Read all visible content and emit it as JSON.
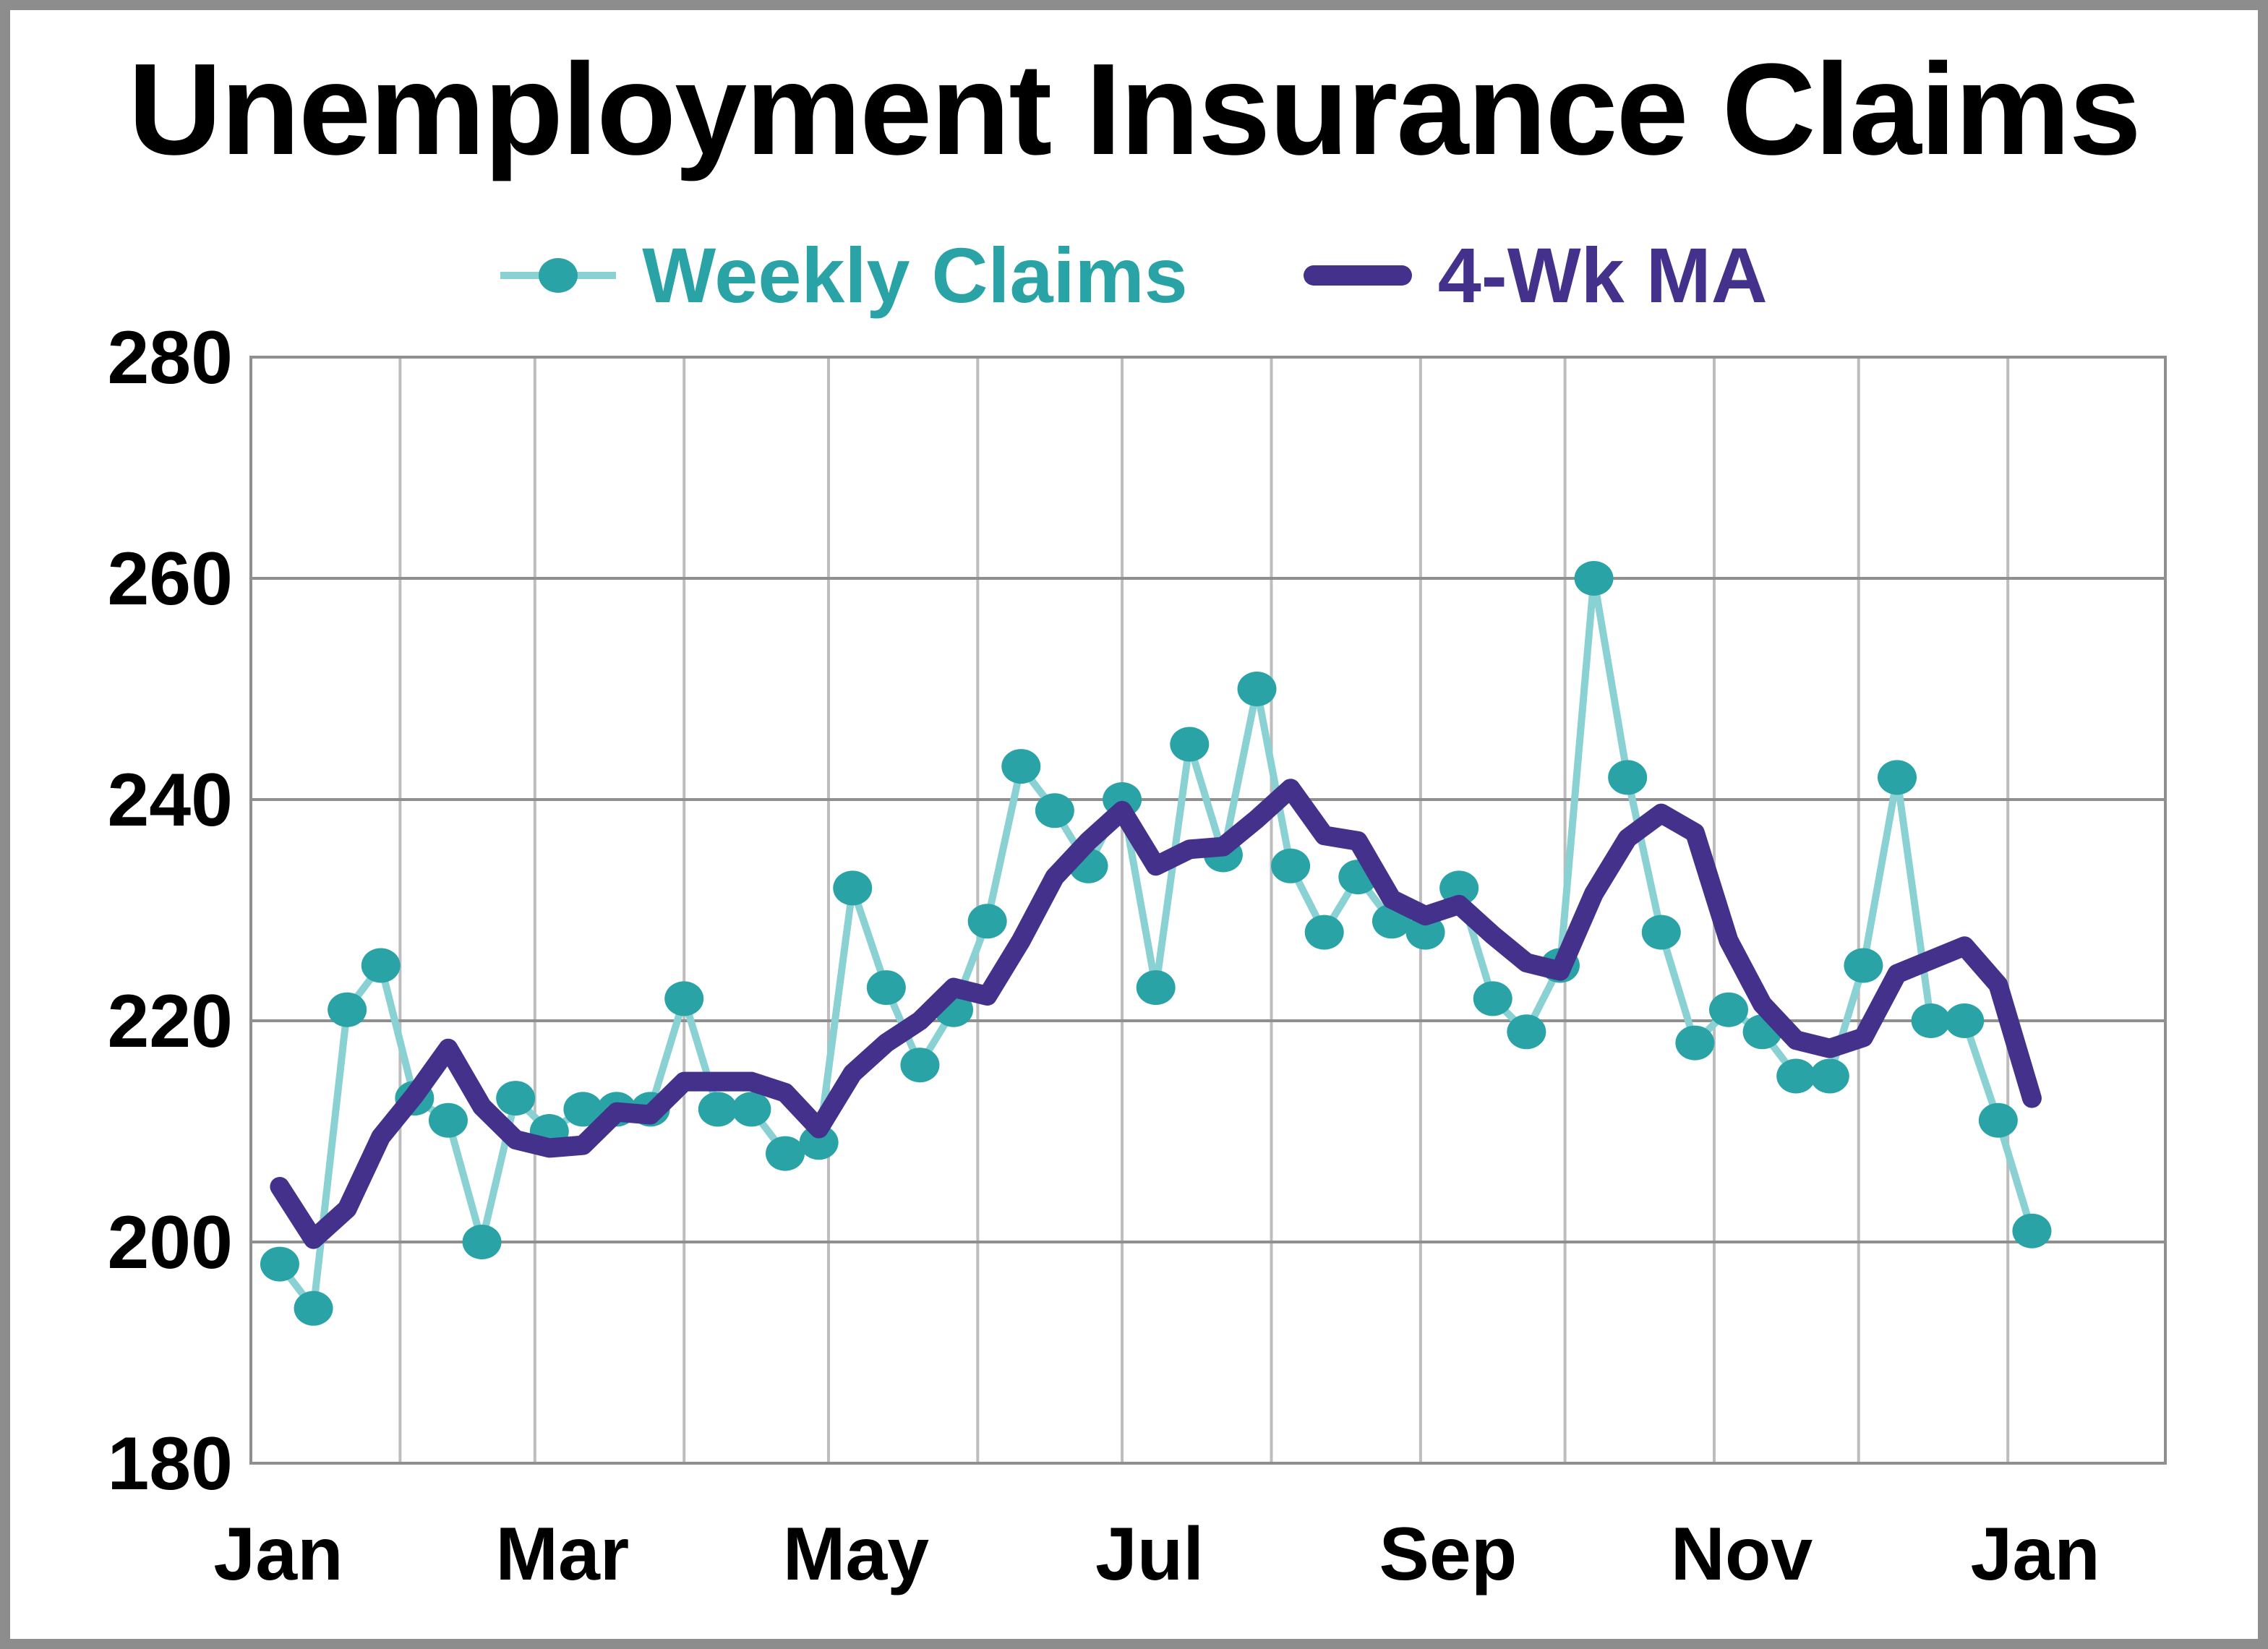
{
  "title": "Unemployment Insurance Claims",
  "legend": {
    "items": [
      {
        "label": "Weekly Claims",
        "color": "#2aa3a6",
        "marker": "line-dot",
        "connector_color": "#8ad1d3"
      },
      {
        "label": "4-Wk MA",
        "color": "#44318c",
        "marker": "thick-line"
      }
    ]
  },
  "chart_data": {
    "type": "line",
    "title": "Unemployment Insurance Claims",
    "xlabel": "",
    "ylabel": "",
    "grid": true,
    "legend_position": "top-center",
    "x_axis": {
      "unit": "week-index",
      "first_week_index": 0,
      "week_step": 1,
      "domain": [
        -0.857,
        55.96
      ],
      "month_boundaries_idx": [
        -0.857,
        3.571,
        7.571,
        12.0,
        16.286,
        20.714,
        25.0,
        29.429,
        33.857,
        38.143,
        42.571,
        46.857,
        51.286
      ],
      "labeled_boundary_positions": [
        0,
        2,
        4,
        6,
        8,
        10,
        12
      ],
      "labels": [
        "Jan",
        "Mar",
        "May",
        "Jul",
        "Sep",
        "Nov",
        "Jan"
      ]
    },
    "y_axis": {
      "ticks": [
        180,
        200,
        220,
        240,
        260,
        280
      ],
      "range": [
        180,
        280
      ]
    },
    "series": [
      {
        "name": "Weekly Claims",
        "style": "line-with-markers",
        "marker_color": "#2aa3a6",
        "line_color": "#8ad1d3",
        "values": [
          198,
          194,
          221,
          225,
          213,
          211,
          200,
          213,
          210,
          212,
          212,
          212,
          222,
          212,
          212,
          208,
          209,
          232,
          223,
          216,
          221,
          229,
          243,
          239,
          234,
          240,
          223,
          245,
          235,
          250,
          234,
          228,
          233,
          229,
          228,
          232,
          222,
          219,
          225,
          260,
          242,
          228,
          218,
          221,
          219,
          215,
          215,
          225,
          242,
          220,
          220,
          211,
          201
        ]
      },
      {
        "name": "4-Wk MA",
        "style": "thick-line",
        "line_color": "#44318c",
        "values": [
          205,
          200.25,
          203,
          209.5,
          213.25,
          217.5,
          212.25,
          209.25,
          208.5,
          208.75,
          211.75,
          211.5,
          214.5,
          214.5,
          214.5,
          213.5,
          210.25,
          215.25,
          218,
          220,
          223,
          222.25,
          227.25,
          233,
          236.25,
          239,
          234,
          235.5,
          235.75,
          238.25,
          241,
          236.75,
          236.25,
          231,
          229.5,
          230.5,
          227.75,
          225.25,
          224.5,
          231.5,
          236.5,
          238.75,
          237,
          227.25,
          221.5,
          218.25,
          217.5,
          218.5,
          224.25,
          225.5,
          226.75,
          223.25,
          213
        ]
      }
    ]
  },
  "style_colors": {
    "h_gridline": "#8f8f8f",
    "v_gridline": "#bdbdbd",
    "plot_border": "#8f8f8f",
    "frame": "#8d8d8d",
    "background": "#ffffff",
    "text": "#000000"
  }
}
